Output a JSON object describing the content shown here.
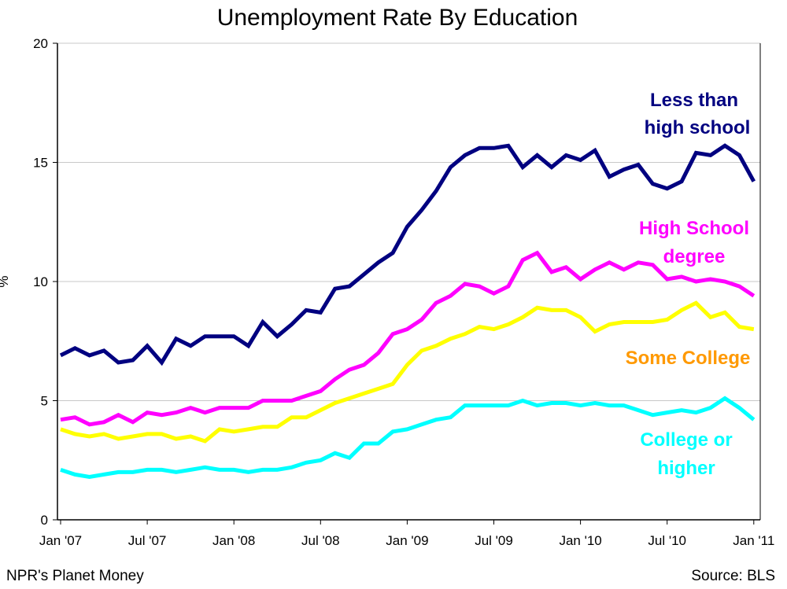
{
  "chart_data": {
    "type": "line",
    "title": "Unemployment Rate By Education",
    "xlabel": "",
    "ylabel": "%",
    "ylim": [
      0,
      20
    ],
    "yticks": [
      "0",
      "5",
      "10",
      "15",
      "20"
    ],
    "xtick_labels": [
      "Jan '07",
      "Jul '07",
      "Jan '08",
      "Jul '08",
      "Jan '09",
      "Jul '09",
      "Jan '10",
      "Jul '10",
      "Jan '11"
    ],
    "x_start": "Jan 2007",
    "x_end": "Jan 2011",
    "x_interval": "monthly",
    "grid": "horizontal",
    "series": [
      {
        "name": "Less than high school",
        "label_lines": [
          "Less than",
          "high school"
        ],
        "color": "#000080",
        "label_color": "#000080",
        "values": [
          6.9,
          7.2,
          6.9,
          7.1,
          6.6,
          6.7,
          7.3,
          6.6,
          7.6,
          7.3,
          7.7,
          7.7,
          7.7,
          7.3,
          8.3,
          7.7,
          8.2,
          8.8,
          8.7,
          9.7,
          9.8,
          10.3,
          10.8,
          11.2,
          12.3,
          13.0,
          13.8,
          14.8,
          15.3,
          15.6,
          15.6,
          15.7,
          14.8,
          15.3,
          14.8,
          15.3,
          15.1,
          15.5,
          14.4,
          14.7,
          14.9,
          14.1,
          13.9,
          14.2,
          15.4,
          15.3,
          15.7,
          15.3,
          14.2
        ]
      },
      {
        "name": "High School degree",
        "label_lines": [
          "High School",
          "degree"
        ],
        "color": "#FF00FF",
        "label_color": "#FF00FF",
        "values": [
          4.2,
          4.3,
          4.0,
          4.1,
          4.4,
          4.1,
          4.5,
          4.4,
          4.5,
          4.7,
          4.5,
          4.7,
          4.7,
          4.7,
          5.0,
          5.0,
          5.0,
          5.2,
          5.4,
          5.9,
          6.3,
          6.5,
          7.0,
          7.8,
          8.0,
          8.4,
          9.1,
          9.4,
          9.9,
          9.8,
          9.5,
          9.8,
          10.9,
          11.2,
          10.4,
          10.6,
          10.1,
          10.5,
          10.8,
          10.5,
          10.8,
          10.7,
          10.1,
          10.2,
          10.0,
          10.1,
          10.0,
          9.8,
          9.4
        ]
      },
      {
        "name": "Some College",
        "label_lines": [
          "Some College"
        ],
        "color": "#FFFF00",
        "label_color": "#FF9900",
        "values": [
          3.8,
          3.6,
          3.5,
          3.6,
          3.4,
          3.5,
          3.6,
          3.6,
          3.4,
          3.5,
          3.3,
          3.8,
          3.7,
          3.8,
          3.9,
          3.9,
          4.3,
          4.3,
          4.6,
          4.9,
          5.1,
          5.3,
          5.5,
          5.7,
          6.5,
          7.1,
          7.3,
          7.6,
          7.8,
          8.1,
          8.0,
          8.2,
          8.5,
          8.9,
          8.8,
          8.8,
          8.5,
          7.9,
          8.2,
          8.3,
          8.3,
          8.3,
          8.4,
          8.8,
          9.1,
          8.5,
          8.7,
          8.1,
          8.0
        ]
      },
      {
        "name": "College or higher",
        "label_lines": [
          "College or",
          "higher"
        ],
        "color": "#00FFFF",
        "label_color": "#00FFFF",
        "values": [
          2.1,
          1.9,
          1.8,
          1.9,
          2.0,
          2.0,
          2.1,
          2.1,
          2.0,
          2.1,
          2.2,
          2.1,
          2.1,
          2.0,
          2.1,
          2.1,
          2.2,
          2.4,
          2.5,
          2.8,
          2.6,
          3.2,
          3.2,
          3.7,
          3.8,
          4.0,
          4.2,
          4.3,
          4.8,
          4.8,
          4.8,
          4.8,
          5.0,
          4.8,
          4.9,
          4.9,
          4.8,
          4.9,
          4.8,
          4.8,
          4.6,
          4.4,
          4.5,
          4.6,
          4.5,
          4.7,
          5.1,
          4.7,
          4.2
        ]
      }
    ]
  },
  "footer": {
    "left": "NPR's Planet Money",
    "right": "Source: BLS"
  }
}
